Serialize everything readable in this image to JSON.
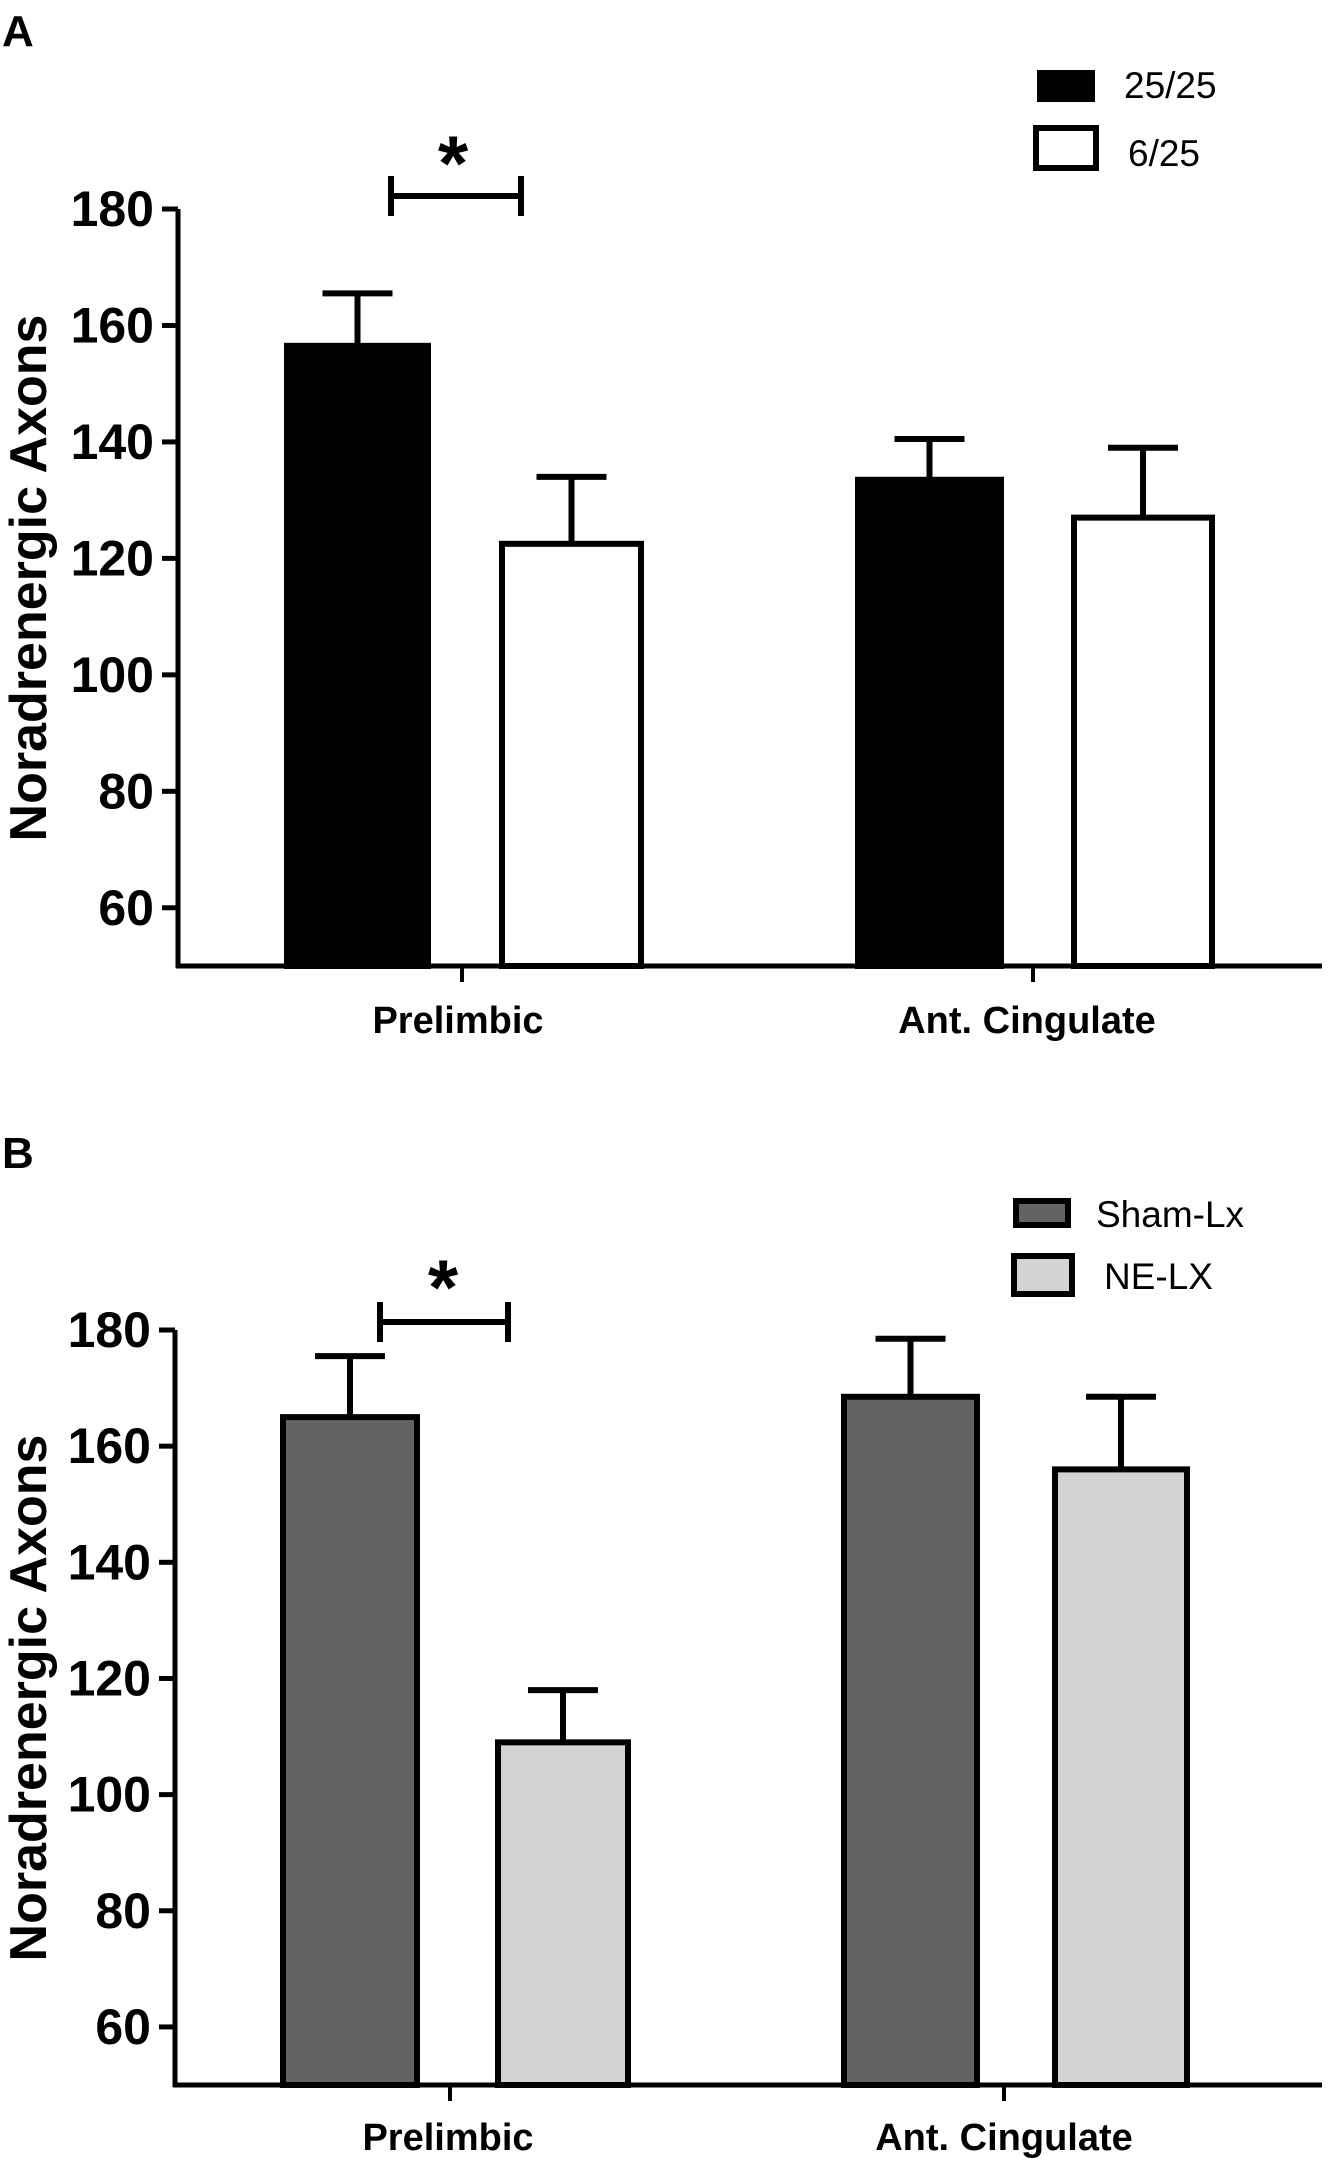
{
  "figure": {
    "background": "#ffffff",
    "axis_color": "#000000"
  },
  "chart_data": [
    {
      "panel_label": "A",
      "type": "bar",
      "title": "",
      "xlabel": "",
      "ylabel": "Noradrenergic Axons",
      "categories": [
        "Prelimbic",
        "Ant. Cingulate"
      ],
      "ylim": [
        50,
        180
      ],
      "yticks": [
        60,
        80,
        100,
        120,
        140,
        160,
        180
      ],
      "ytick_labels": [
        "60",
        "80",
        "100",
        "120",
        "140",
        "160",
        "180"
      ],
      "legend_position": "top-right",
      "series": [
        {
          "name": "25/25",
          "fill": "#000000",
          "values": [
            156.5,
            133.5
          ],
          "errors": [
            9,
            7
          ]
        },
        {
          "name": "6/25",
          "fill": "#ffffff",
          "values": [
            122.5,
            127
          ],
          "errors": [
            11.5,
            12
          ]
        }
      ],
      "annotations": [
        {
          "text": "*",
          "category": "Prelimbic",
          "bracket_value": 182
        }
      ]
    },
    {
      "panel_label": "B",
      "type": "bar",
      "title": "",
      "xlabel": "",
      "ylabel": "Noradrenergic Axons",
      "categories": [
        "Prelimbic",
        "Ant. Cingulate"
      ],
      "ylim": [
        50,
        180
      ],
      "yticks": [
        60,
        80,
        100,
        120,
        140,
        160,
        180
      ],
      "ytick_labels": [
        "60",
        "80",
        "100",
        "120",
        "140",
        "160",
        "180"
      ],
      "legend_position": "top-right",
      "series": [
        {
          "name": "Sham-Lx",
          "fill": "#636363",
          "values": [
            165,
            168.5
          ],
          "errors": [
            10.5,
            10
          ]
        },
        {
          "name": "NE-LX",
          "fill": "#d3d3d3",
          "values": [
            109,
            156
          ],
          "errors": [
            9,
            12.5
          ]
        }
      ],
      "annotations": [
        {
          "text": "*",
          "category": "Prelimbic",
          "bracket_value": 182
        }
      ]
    }
  ]
}
